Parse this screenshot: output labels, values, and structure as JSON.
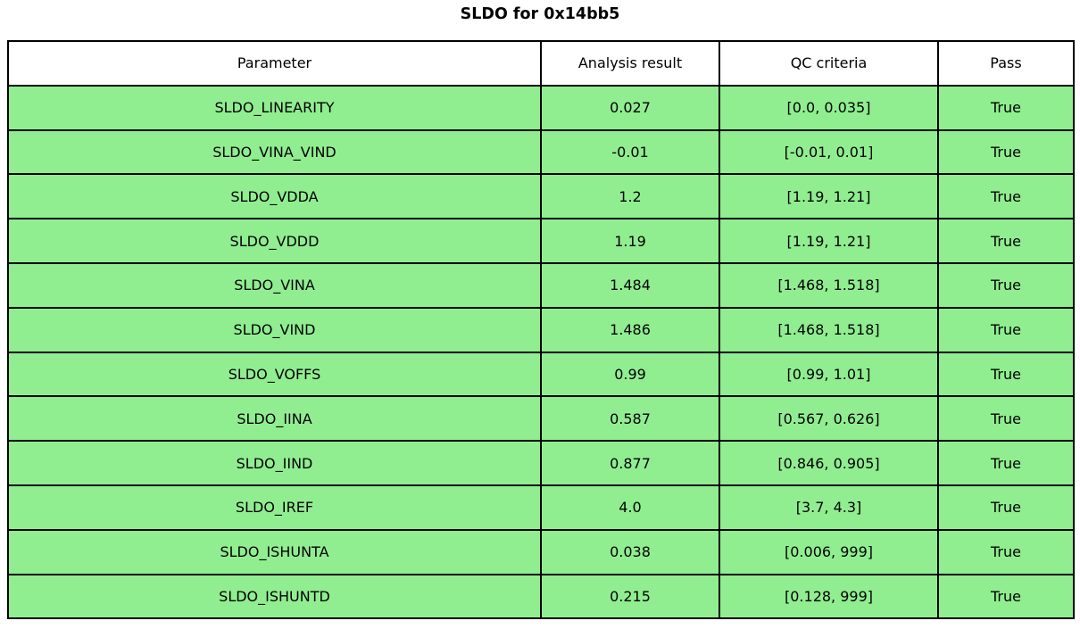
{
  "title": "SLDO for 0x14bb5",
  "colors": {
    "page_bg": "#ffffff",
    "row_bg": "#90EE90",
    "header_bg": "#ffffff",
    "border": "#000000",
    "text": "#000000"
  },
  "chart_data": {
    "type": "table",
    "title": "SLDO for 0x14bb5",
    "columns": [
      "Parameter",
      "Analysis result",
      "QC criteria",
      "Pass"
    ],
    "rows": [
      [
        "SLDO_LINEARITY",
        "0.027",
        "[0.0, 0.035]",
        "True"
      ],
      [
        "SLDO_VINA_VIND",
        "-0.01",
        "[-0.01, 0.01]",
        "True"
      ],
      [
        "SLDO_VDDA",
        "1.2",
        "[1.19, 1.21]",
        "True"
      ],
      [
        "SLDO_VDDD",
        "1.19",
        "[1.19, 1.21]",
        "True"
      ],
      [
        "SLDO_VINA",
        "1.484",
        "[1.468, 1.518]",
        "True"
      ],
      [
        "SLDO_VIND",
        "1.486",
        "[1.468, 1.518]",
        "True"
      ],
      [
        "SLDO_VOFFS",
        "0.99",
        "[0.99, 1.01]",
        "True"
      ],
      [
        "SLDO_IINA",
        "0.587",
        "[0.567, 0.626]",
        "True"
      ],
      [
        "SLDO_IIND",
        "0.877",
        "[0.846, 0.905]",
        "True"
      ],
      [
        "SLDO_IREF",
        "4.0",
        "[3.7, 4.3]",
        "True"
      ],
      [
        "SLDO_ISHUNTA",
        "0.038",
        "[0.006, 999]",
        "True"
      ],
      [
        "SLDO_ISHUNTD",
        "0.215",
        "[0.128, 999]",
        "True"
      ]
    ],
    "layout": {
      "header_background": "#ffffff",
      "row_background": "#90EE90",
      "grid": true,
      "text_align": "center"
    }
  }
}
